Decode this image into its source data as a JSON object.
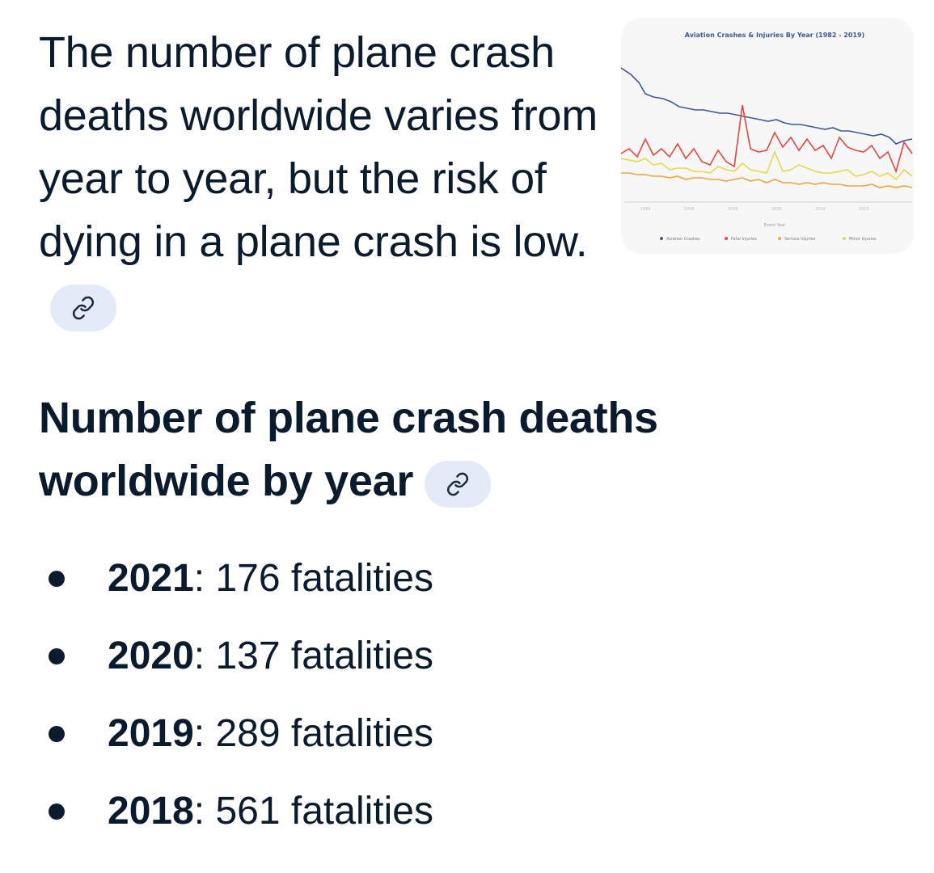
{
  "intro": {
    "text": "The number of plane crash deaths worldwide varies from year to year, but the risk of dying in a plane crash is low."
  },
  "thumbnail": {
    "title": "Aviation Crashes & Injuries By Year (1982 - 2019)",
    "x_label": "Event Year",
    "legend": [
      "Aviation Crashes",
      "Fatal Injuries",
      "Serious Injuries",
      "Minor Injuries"
    ],
    "colors": [
      "#3b5998",
      "#e8463c",
      "#f5a23c",
      "#e6d84a"
    ]
  },
  "section": {
    "heading": "Number of plane crash deaths worldwide by year"
  },
  "facts": [
    {
      "year": "2021",
      "sep": ":",
      "value": " 176 fatalities"
    },
    {
      "year": "2020",
      "sep": ":",
      "value": " 137 fatalities"
    },
    {
      "year": "2019",
      "sep": ":",
      "value": " 289 fatalities"
    },
    {
      "year": "2018",
      "sep": ":",
      "value": " 561 fatalities"
    }
  ],
  "icons": {
    "link": "link-icon"
  }
}
